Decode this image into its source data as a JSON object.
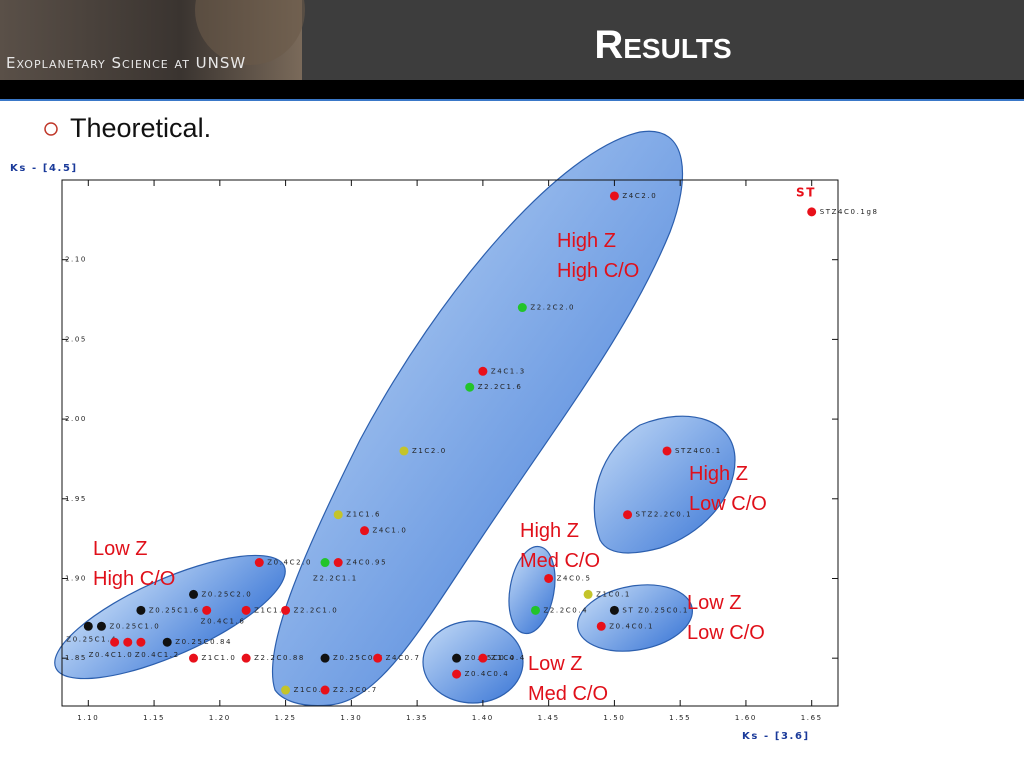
{
  "header": {
    "logo_text": "Exoplanetary Science at UNSW",
    "title": "Results"
  },
  "bullet": "Theoretical.",
  "chart_data": {
    "type": "scatter",
    "ylabel": "Ks - [4.5]",
    "xlabel": "Ks - [3.6]",
    "corner_label": "ST",
    "xlim": [
      1.08,
      1.67
    ],
    "ylim": [
      1.82,
      2.15
    ],
    "xticks": [
      {
        "value": 1.1,
        "label": "1.10"
      },
      1.15,
      {
        "value": 1.2,
        "label": "1.20"
      },
      1.25,
      {
        "value": 1.3,
        "label": "1.30"
      },
      1.35,
      {
        "value": 1.4,
        "label": "1.40"
      },
      1.45,
      {
        "value": 1.5,
        "label": "1.50"
      },
      1.55,
      {
        "value": 1.6,
        "label": "1.60"
      },
      1.65
    ],
    "yticks": [
      1.85,
      {
        "value": 1.9,
        "label": "1.90"
      },
      1.95,
      {
        "value": 2.0,
        "label": "2.00"
      },
      2.05,
      {
        "value": 2.1,
        "label": "2.10"
      }
    ],
    "x": [
      1.5,
      1.65,
      1.43,
      1.4,
      1.39,
      1.34,
      1.54,
      1.29,
      1.51,
      1.31,
      1.23,
      1.28,
      1.29,
      1.45,
      1.18,
      1.48,
      1.14,
      1.19,
      1.22,
      1.25,
      1.44,
      1.5,
      1.11,
      1.1,
      1.49,
      1.12,
      1.13,
      1.14,
      1.16,
      1.38,
      1.4,
      1.18,
      1.22,
      1.28,
      1.32,
      1.38,
      1.25,
      1.28
    ],
    "values": [
      2.14,
      2.13,
      2.07,
      2.03,
      2.02,
      1.98,
      1.98,
      1.94,
      1.94,
      1.93,
      1.91,
      1.91,
      1.91,
      1.9,
      1.89,
      1.89,
      1.88,
      1.88,
      1.88,
      1.88,
      1.88,
      1.88,
      1.87,
      1.87,
      1.87,
      1.86,
      1.86,
      1.86,
      1.86,
      1.85,
      1.85,
      1.85,
      1.85,
      1.85,
      1.85,
      1.84,
      1.83,
      1.83
    ],
    "point_labels": [
      "Z4C2.0",
      "STZ4C0.1g8",
      "Z2.2C2.0",
      "Z4C1.3",
      "Z2.2C1.6",
      "Z1C2.0",
      "STZ4C0.1",
      "Z1C1.6",
      "STZ2.2C0.1",
      "Z4C1.0",
      "Z0.4C2.0",
      "Z2.2C1.1",
      "Z4C0.95",
      "Z4C0.5",
      "Z0.25C2.0",
      "Z1C0.1",
      "Z0.25C1.6",
      "Z0.4C1.6",
      "Z1C1.3",
      "Z2.2C1.0",
      "Z2.2C0.4",
      "ST Z0.25C0.1",
      "Z0.25C1.0",
      "Z0.25C1.4",
      "Z0.4C0.1",
      "Z0.4C1.0",
      null,
      "Z0.4C1.2",
      "Z0.25C0.84",
      "Z0.25C0.4",
      "Z1C0.4",
      "Z1C1.0",
      "Z2.2C0.88",
      "Z0.25C0.7",
      "Z4C0.7",
      "Z0.4C0.4",
      "Z1C0.7",
      "Z2.2C0.7"
    ],
    "point_colors": [
      "#e8101a",
      "#e8101a",
      "#22c42a",
      "#e8101a",
      "#22c42a",
      "#c4c42a",
      "#e8101a",
      "#c4c42a",
      "#e8101a",
      "#e8101a",
      "#e8101a",
      "#22c42a",
      "#e8101a",
      "#e8101a",
      "#111111",
      "#c4c42a",
      "#111111",
      "#e8101a",
      "#e8101a",
      "#e8101a",
      "#22c42a",
      "#111111",
      "#111111",
      "#111111",
      "#e8101a",
      "#e8101a",
      "#e8101a",
      "#e8101a",
      "#111111",
      "#111111",
      "#e8101a",
      "#e8101a",
      "#e8101a",
      "#111111",
      "#e8101a",
      "#e8101a",
      "#c4c42a",
      "#e8101a"
    ],
    "annotations": [
      [
        "High Z",
        "High C/O"
      ],
      [
        "Low Z",
        "High C/O"
      ],
      [
        "High Z",
        "Low C/O"
      ],
      [
        "High Z",
        "Med C/O"
      ],
      [
        "Low Z",
        "Low C/O"
      ],
      [
        "Low Z",
        "Med C/O"
      ]
    ]
  }
}
